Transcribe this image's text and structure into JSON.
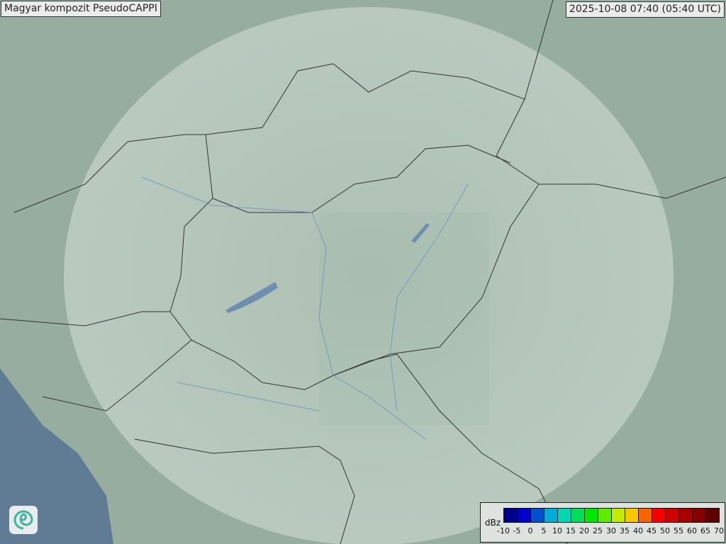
{
  "title": "Magyar kompozit  PseudoCAPPI",
  "timestamp": "2025-10-08 07:40 (05:40 UTC)",
  "legend": {
    "unit": "dBz",
    "ticks": [
      "-10",
      "-5",
      "0",
      "5",
      "10",
      "15",
      "20",
      "25",
      "30",
      "35",
      "40",
      "45",
      "50",
      "55",
      "60",
      "65",
      "70"
    ],
    "colors": [
      "#00008f",
      "#0000cc",
      "#0050d0",
      "#00acd8",
      "#00d8b4",
      "#00dc5c",
      "#00e800",
      "#60ea00",
      "#c4ec00",
      "#f8c800",
      "#f86400",
      "#f80000",
      "#d00000",
      "#a80000",
      "#880000",
      "#600000"
    ]
  },
  "logo_icon": "swirl-logo-icon"
}
